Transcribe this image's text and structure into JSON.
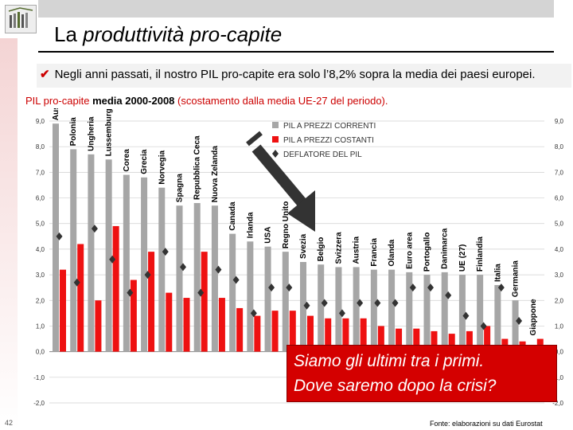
{
  "slide": {
    "title_plain": "La ",
    "title_italic": "produttività pro-capite",
    "bullet": "Negli anni passati, il nostro PIL pro-capite era solo l’8,2% sopra la media dei paesi europei.",
    "caption_prefix": "PIL pro-capite ",
    "caption_bold": "media 2000-2008",
    "caption_suffix": " (scostamento dalla media UE-27 del periodo).",
    "callout_line1": "Siamo gli ultimi tra i primi.",
    "callout_line2": "Dove saremo dopo la crisi?",
    "page_number": "42",
    "source": "Fonte: elaborazioni su dati Eurostat"
  },
  "colors": {
    "grey": "#a6a6a6",
    "red": "#ee1111",
    "diamond": "#333333",
    "accent": "#cc0000"
  },
  "chart_data": {
    "type": "bar",
    "title": "PIL pro-capite media 2000-2008",
    "ylim": [
      -2.0,
      9.0
    ],
    "yticks": [
      "9,0",
      "8,0",
      "7,0",
      "6,0",
      "5,0",
      "4,0",
      "3,0",
      "2,0",
      "1,0",
      "0,0",
      "-1,0",
      "-2,0"
    ],
    "legend": [
      "PIL A PREZZI CORRENTI",
      "PIL A PREZZI COSTANTI",
      "DEFLATORE DEL PIL"
    ],
    "categories": [
      "Australia",
      "Polonia",
      "Ungheria",
      "Lussemburgo",
      "Corea",
      "Grecia",
      "Norvegia",
      "Spagna",
      "Repubblica Ceca",
      "Nuova Zelanda",
      "Canada",
      "Irlanda",
      "USA",
      "Regno Unito",
      "Svezia",
      "Belgio",
      "Svizzera",
      "Austria",
      "Francia",
      "Olanda",
      "Euro area",
      "Portogallo",
      "Danimarca",
      "UE (27)",
      "Finlandia",
      "Italia",
      "Germania",
      "Giappone"
    ],
    "series": [
      {
        "name": "PIL A PREZZI CORRENTI",
        "values": [
          8.9,
          7.9,
          7.7,
          7.5,
          6.9,
          6.8,
          6.4,
          5.7,
          5.8,
          5.7,
          4.6,
          4.3,
          4.1,
          3.9,
          3.5,
          3.4,
          3.3,
          3.3,
          3.2,
          3.2,
          3.1,
          3.0,
          3.1,
          3.0,
          3.0,
          2.6,
          2.0,
          -0.5
        ]
      },
      {
        "name": "PIL A PREZZI COSTANTI",
        "values": [
          3.2,
          4.2,
          2.0,
          4.9,
          2.8,
          3.9,
          2.3,
          2.1,
          3.9,
          2.1,
          1.7,
          1.4,
          1.6,
          1.6,
          1.4,
          1.3,
          1.3,
          1.3,
          1.0,
          0.9,
          0.9,
          0.8,
          0.7,
          0.8,
          1.0,
          0.5,
          0.4,
          0.5
        ]
      },
      {
        "name": "DEFLATORE DEL PIL",
        "values": [
          4.5,
          2.7,
          4.8,
          3.6,
          2.3,
          3.0,
          3.9,
          3.3,
          2.3,
          3.2,
          2.8,
          1.5,
          2.5,
          2.5,
          1.8,
          1.9,
          1.5,
          1.9,
          1.9,
          1.9,
          2.5,
          2.5,
          2.2,
          1.4,
          1.0,
          2.5,
          1.2,
          -1.2
        ]
      }
    ]
  }
}
